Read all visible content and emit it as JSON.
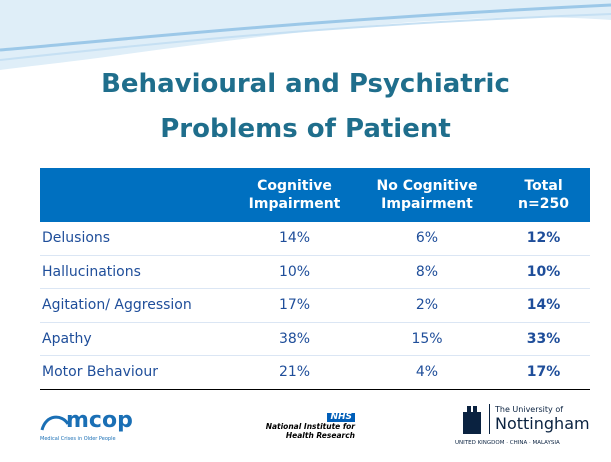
{
  "title": [
    "Behavioural and Psychiatric",
    "Problems of Patient"
  ],
  "table": {
    "header": [
      [],
      [
        "Cognitive",
        "Impairment"
      ],
      [
        "No Cognitive",
        "Impairment"
      ],
      [
        "Total",
        "n=250"
      ]
    ],
    "rows": [
      [
        "Delusions",
        "14%",
        "6%",
        "12%"
      ],
      [
        "Hallucinations",
        "10%",
        "8%",
        "10%"
      ],
      [
        "Agitation/ Aggression",
        "17%",
        "2%",
        "14%"
      ],
      [
        "Apathy",
        "38%",
        "15%",
        "33%"
      ],
      [
        "Motor Behaviour",
        "21%",
        "4%",
        "17%"
      ]
    ]
  },
  "footer": {
    "mcop": {
      "name": "mcop",
      "tagline": "Medical Crises in Older People"
    },
    "nhs": {
      "badge": "NHS",
      "lines": [
        "National Institute for",
        "Health Research"
      ]
    },
    "nottingham": {
      "lines": [
        "The University of",
        "Nottingham"
      ],
      "tagline": "UNITED KINGDOM · CHINA · MALAYSIA"
    }
  }
}
